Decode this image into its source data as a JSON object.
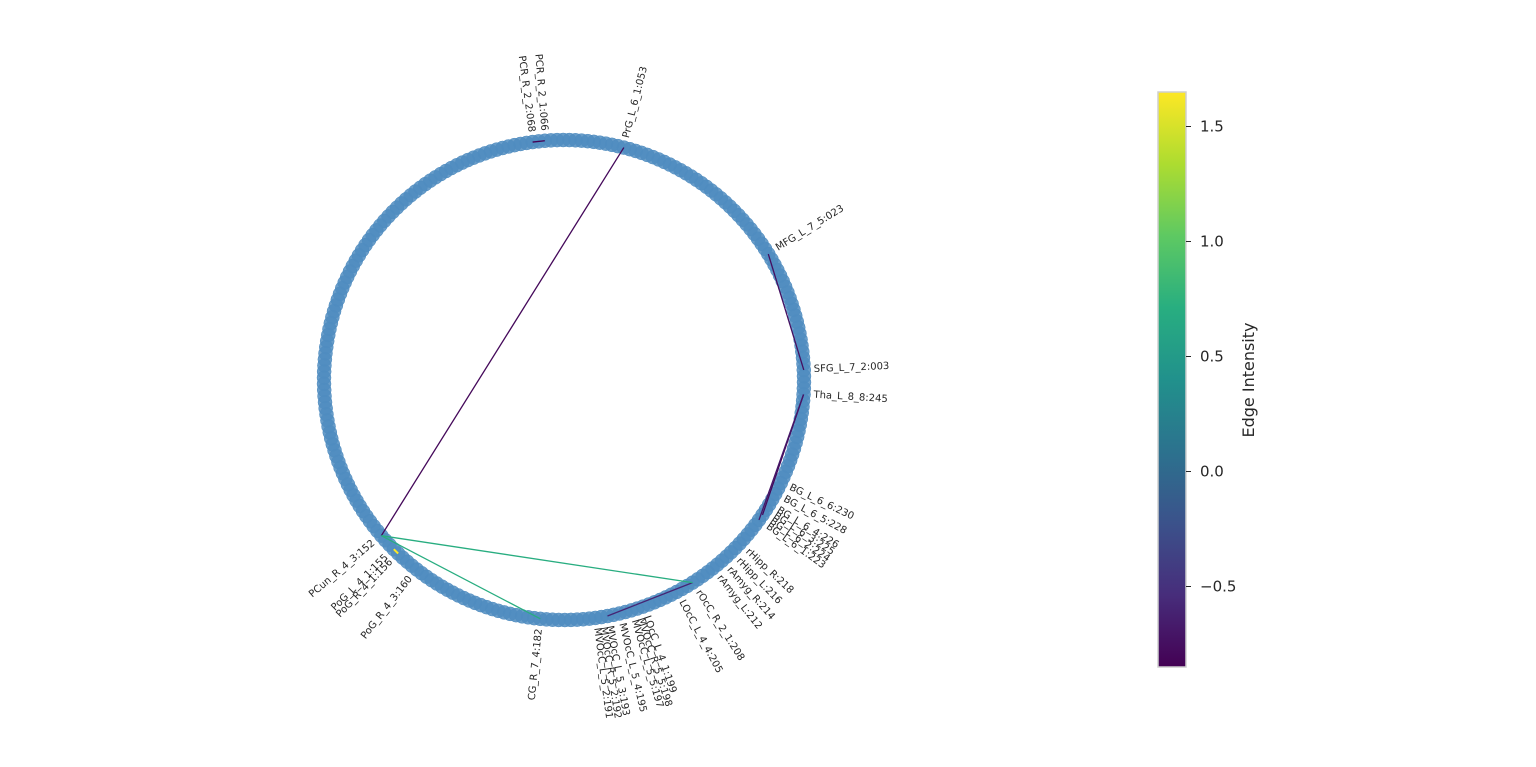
{
  "chart_data": {
    "type": "circular-connectivity",
    "node_count": 246,
    "node_color": "#4f8cc0",
    "labels": [
      {
        "text": "PCR_R_2_1:066",
        "node": 66
      },
      {
        "text": "PCR_R_2_2:068",
        "node": 68
      },
      {
        "text": "PrG_L_6_1:053",
        "node": 53
      },
      {
        "text": "MFG_L_7_5:023",
        "node": 23
      },
      {
        "text": "SFG_L_7_2:003",
        "node": 3
      },
      {
        "text": "Tha_L_8_8:245",
        "node": 245
      },
      {
        "text": "BG_L_6_6:230",
        "node": 230
      },
      {
        "text": "BG_L_6_5:228",
        "node": 228
      },
      {
        "text": "BG_L_6_4:226",
        "node": 226
      },
      {
        "text": "BG_L_6_3:225",
        "node": 225
      },
      {
        "text": "BG_L_6_2:224",
        "node": 224
      },
      {
        "text": "BG_L_6_1:223",
        "node": 223
      },
      {
        "text": "rHipp_L:216",
        "node": 216
      },
      {
        "text": "rHipp_R:218",
        "node": 218
      },
      {
        "text": "rAmyg_L:212",
        "node": 212
      },
      {
        "text": "rAmyg_R:214",
        "node": 214
      },
      {
        "text": "rOcC_R_2_1:208",
        "node": 208
      },
      {
        "text": "LOcC_L_4_4:205",
        "node": 205
      },
      {
        "text": "LOcC_L_4_1:199",
        "node": 199
      },
      {
        "text": "MVOcC_R_5_5:198",
        "node": 198
      },
      {
        "text": "MVOcC_L_5_5:197",
        "node": 197
      },
      {
        "text": "MVOcC_L_5_4:195",
        "node": 195
      },
      {
        "text": "MVOcC_L_5_3:193",
        "node": 193
      },
      {
        "text": "MVOcC_R_5_2:192",
        "node": 192
      },
      {
        "text": "MVOcC_L_5_2:191",
        "node": 191
      },
      {
        "text": "CG_R_7_4:182",
        "node": 182
      },
      {
        "text": "PoG_R_4_3:160",
        "node": 160
      },
      {
        "text": "PoG_R_4_1:156",
        "node": 156
      },
      {
        "text": "PoG_L_4_1:155",
        "node": 155
      },
      {
        "text": "PCun_R_4_3:152",
        "node": 152
      }
    ],
    "edges": [
      {
        "source": 66,
        "target": 68,
        "value": -0.85
      },
      {
        "source": 53,
        "target": 152,
        "value": -0.8
      },
      {
        "source": 23,
        "target": 3,
        "value": -0.75
      },
      {
        "source": 245,
        "target": 224,
        "value": -0.8
      },
      {
        "source": 245,
        "target": 223,
        "value": -0.7
      },
      {
        "source": 208,
        "target": 193,
        "value": -0.6
      },
      {
        "source": 152,
        "target": 208,
        "value": 0.7
      },
      {
        "source": 152,
        "target": 182,
        "value": 0.7
      },
      {
        "source": 155,
        "target": 156,
        "value": 1.65
      }
    ],
    "colorbar": {
      "label": "Edge Intensity",
      "vmin": -0.85,
      "vmax": 1.65,
      "ticks": [
        -0.5,
        0.0,
        0.5,
        1.0,
        1.5
      ],
      "tick_labels": [
        "−0.5",
        "0.0",
        "0.5",
        "1.0",
        "1.5"
      ],
      "colormap": "viridis"
    }
  }
}
